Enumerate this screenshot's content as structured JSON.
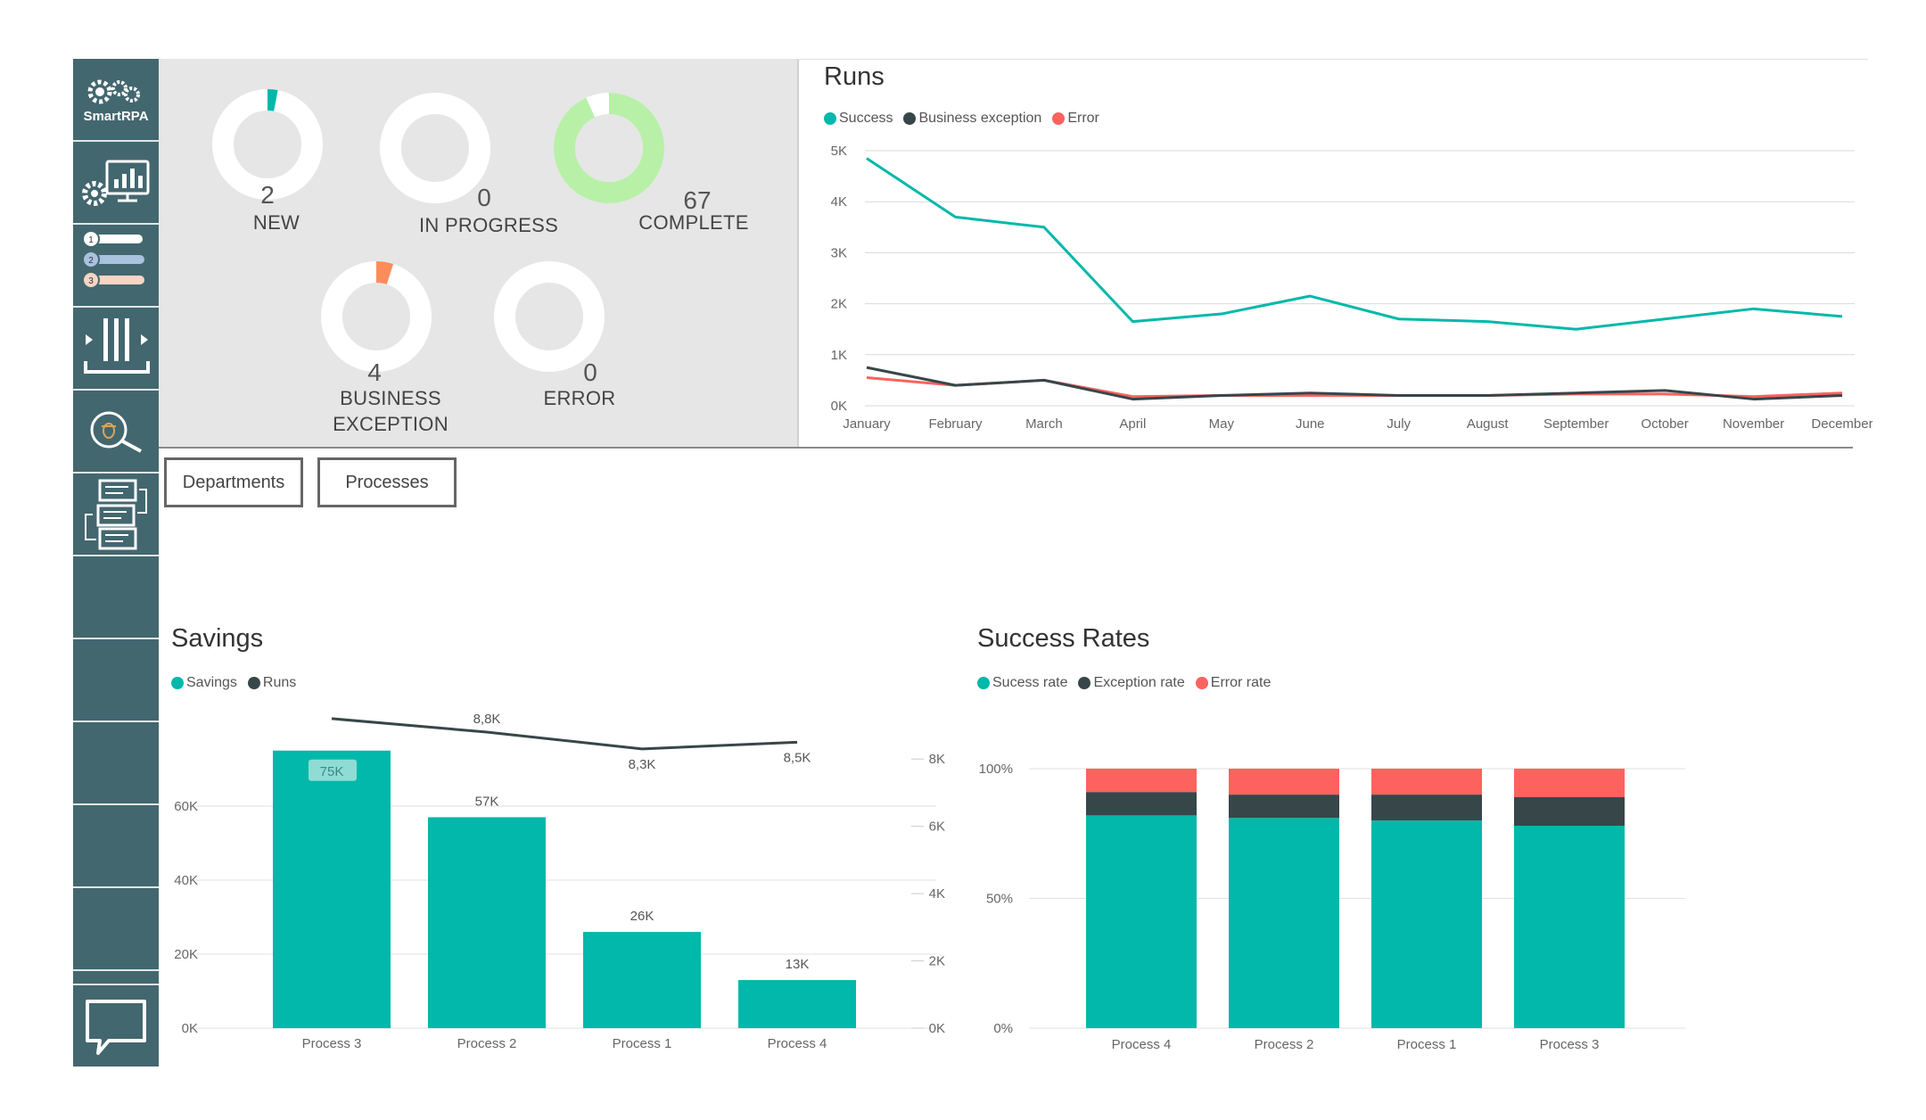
{
  "sidebar": {
    "logo_text": "SmartRPA",
    "items": [
      {
        "icon": "gears-logo-icon"
      },
      {
        "icon": "settings-dashboard-icon"
      },
      {
        "icon": "numbered-list-icon"
      },
      {
        "icon": "queue-icon"
      },
      {
        "icon": "bug-search-icon"
      },
      {
        "icon": "workflow-icon"
      },
      {
        "icon": "blank"
      },
      {
        "icon": "blank"
      },
      {
        "icon": "blank"
      },
      {
        "icon": "blank"
      },
      {
        "icon": "blank"
      }
    ],
    "chat_icon": "chat-bubble-icon"
  },
  "kpis": [
    {
      "label": "NEW",
      "value": "2",
      "fraction": 0.03,
      "color": "#01b8aa"
    },
    {
      "label": "IN PROGRESS",
      "value": "0",
      "fraction": 0,
      "color": "#01b8aa"
    },
    {
      "label": "COMPLETE",
      "value": "67",
      "fraction": 0.93,
      "color": "#b8f0a8"
    },
    {
      "label_line1": "BUSINESS",
      "label_line2": "EXCEPTION",
      "value": "4",
      "fraction": 0.05,
      "color": "#fd8c5b"
    },
    {
      "label": "ERROR",
      "value": "0",
      "fraction": 0,
      "color": "#fd625e"
    }
  ],
  "tabs": {
    "departments": "Departments",
    "processes": "Processes"
  },
  "runs_chart": {
    "title": "Runs",
    "legend": [
      {
        "name": "Success",
        "color": "#01b8aa"
      },
      {
        "name": "Business exception",
        "color": "#374649"
      },
      {
        "name": "Error",
        "color": "#fd625e"
      }
    ],
    "y_ticks": [
      "0K",
      "1K",
      "2K",
      "3K",
      "4K",
      "5K"
    ]
  },
  "savings_chart": {
    "title": "Savings",
    "legend": [
      {
        "name": "Savings",
        "color": "#01b8aa"
      },
      {
        "name": "Runs",
        "color": "#374649"
      }
    ],
    "y_ticks_left": [
      "0K",
      "20K",
      "40K",
      "60K"
    ],
    "y_ticks_right": [
      "0K",
      "2K",
      "4K",
      "6K",
      "8K"
    ],
    "bar_labels": [
      "75K",
      "57K",
      "26K",
      "13K"
    ],
    "line_labels": [
      "",
      "8,8K",
      "8,3K",
      "8,5K"
    ]
  },
  "success_chart": {
    "title": "Success Rates",
    "legend": [
      {
        "name": "Sucess rate",
        "color": "#01b8aa"
      },
      {
        "name": "Exception rate",
        "color": "#374649"
      },
      {
        "name": "Error rate",
        "color": "#fd625e"
      }
    ],
    "y_ticks": [
      "0%",
      "50%",
      "100%"
    ]
  },
  "chart_data": [
    {
      "type": "line",
      "title": "Runs",
      "categories": [
        "January",
        "February",
        "March",
        "April",
        "May",
        "June",
        "July",
        "August",
        "September",
        "October",
        "November",
        "December"
      ],
      "ylim": [
        0,
        5000
      ],
      "series": [
        {
          "name": "Success",
          "color": "#01b8aa",
          "values": [
            4850,
            3700,
            3500,
            1650,
            1800,
            2150,
            1700,
            1650,
            1500,
            1700,
            1900,
            1750
          ]
        },
        {
          "name": "Business exception",
          "color": "#374649",
          "values": [
            750,
            400,
            500,
            130,
            200,
            250,
            200,
            200,
            250,
            300,
            130,
            200
          ]
        },
        {
          "name": "Error",
          "color": "#fd625e",
          "values": [
            550,
            400,
            500,
            180,
            200,
            200,
            200,
            200,
            230,
            230,
            180,
            250
          ]
        }
      ]
    },
    {
      "type": "bar",
      "title": "Savings",
      "categories": [
        "Process 3",
        "Process 2",
        "Process 1",
        "Process 4"
      ],
      "ylim": [
        0,
        80000
      ],
      "y2lim": [
        0,
        8800
      ],
      "series": [
        {
          "name": "Savings",
          "color": "#01b8aa",
          "values": [
            75000,
            57000,
            26000,
            13000
          ]
        },
        {
          "name": "Runs",
          "color": "#374649",
          "axis": "right",
          "values": [
            9200,
            8800,
            8300,
            8500
          ]
        }
      ]
    },
    {
      "type": "bar",
      "stacked": true,
      "title": "Success Rates",
      "categories": [
        "Process 4",
        "Process 2",
        "Process 1",
        "Process 3"
      ],
      "ylim": [
        0,
        1
      ],
      "series": [
        {
          "name": "Sucess rate",
          "color": "#01b8aa",
          "values": [
            0.82,
            0.81,
            0.8,
            0.78
          ]
        },
        {
          "name": "Exception rate",
          "color": "#374649",
          "values": [
            0.09,
            0.09,
            0.1,
            0.11
          ]
        },
        {
          "name": "Error rate",
          "color": "#fd625e",
          "values": [
            0.09,
            0.1,
            0.1,
            0.11
          ]
        }
      ]
    }
  ]
}
